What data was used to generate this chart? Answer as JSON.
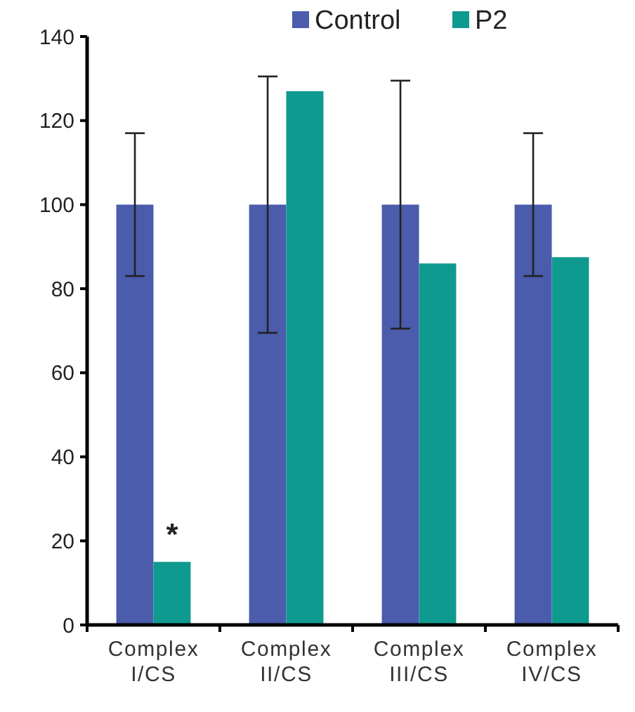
{
  "chart_data": {
    "type": "bar",
    "categories": [
      "Complex I/CS",
      "Complex II/CS",
      "Complex III/CS",
      "Complex IV/CS"
    ],
    "series": [
      {
        "name": "Control",
        "color": "#4a5cab",
        "values": [
          100,
          100,
          100,
          100
        ],
        "errors": [
          17,
          30.5,
          29.5,
          17
        ]
      },
      {
        "name": "P2",
        "color": "#0f9a8f",
        "values": [
          15,
          127,
          86,
          87.5
        ]
      }
    ],
    "ylim": [
      0,
      140
    ],
    "yticks": [
      0,
      20,
      40,
      60,
      80,
      100,
      120,
      140
    ],
    "grid": false,
    "legend": "top",
    "annotations": [
      {
        "text": "*",
        "x": "Complex I/CS",
        "y": 19
      }
    ]
  }
}
